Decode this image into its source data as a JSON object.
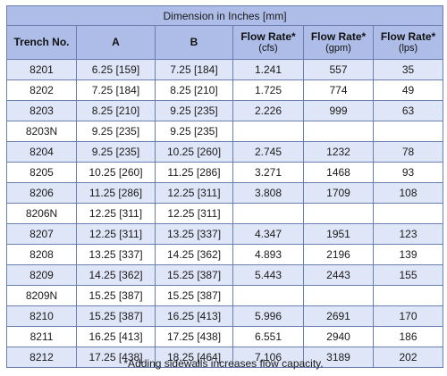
{
  "table": {
    "caption": "Dimension in Inches [mm]",
    "columns": [
      {
        "label": "Trench No.",
        "unit": ""
      },
      {
        "label": "A",
        "unit": ""
      },
      {
        "label": "B",
        "unit": ""
      },
      {
        "label": "Flow Rate*",
        "unit": "(cfs)"
      },
      {
        "label": "Flow Rate*",
        "unit": "(gpm)"
      },
      {
        "label": "Flow Rate*",
        "unit": "(lps)"
      }
    ],
    "rows": [
      [
        "8201",
        "6.25 [159]",
        "7.25 [184]",
        "1.241",
        "557",
        "35"
      ],
      [
        "8202",
        "7.25 [184]",
        "8.25 [210]",
        "1.725",
        "774",
        "49"
      ],
      [
        "8203",
        "8.25 [210]",
        "9.25 [235]",
        "2.226",
        "999",
        "63"
      ],
      [
        "8203N",
        "9.25 [235]",
        "9.25 [235]",
        "",
        "",
        ""
      ],
      [
        "8204",
        "9.25 [235]",
        "10.25 [260]",
        "2.745",
        "1232",
        "78"
      ],
      [
        "8205",
        "10.25 [260]",
        "11.25 [286]",
        "3.271",
        "1468",
        "93"
      ],
      [
        "8206",
        "11.25 [286]",
        "12.25 [311]",
        "3.808",
        "1709",
        "108"
      ],
      [
        "8206N",
        "12.25 [311]",
        "12.25 [311]",
        "",
        "",
        ""
      ],
      [
        "8207",
        "12.25 [311]",
        "13.25 [337]",
        "4.347",
        "1951",
        "123"
      ],
      [
        "8208",
        "13.25 [337]",
        "14.25 [362]",
        "4.893",
        "2196",
        "139"
      ],
      [
        "8209",
        "14.25 [362]",
        "15.25 [387]",
        "5.443",
        "2443",
        "155"
      ],
      [
        "8209N",
        "15.25 [387]",
        "15.25 [387]",
        "",
        "",
        ""
      ],
      [
        "8210",
        "15.25 [387]",
        "16.25 [413]",
        "5.996",
        "2691",
        "170"
      ],
      [
        "8211",
        "16.25 [413]",
        "17.25 [438]",
        "6.551",
        "2940",
        "186"
      ],
      [
        "8212",
        "17.25 [438]",
        "18.25 [464]",
        "7.106",
        "3189",
        "202"
      ]
    ]
  },
  "footnote": "*Adding sidewalls increases flow capacity.",
  "colors": {
    "header_fill": "#aebde8",
    "stripe_fill": "#dfe6f7",
    "border": "#6a7fae"
  }
}
